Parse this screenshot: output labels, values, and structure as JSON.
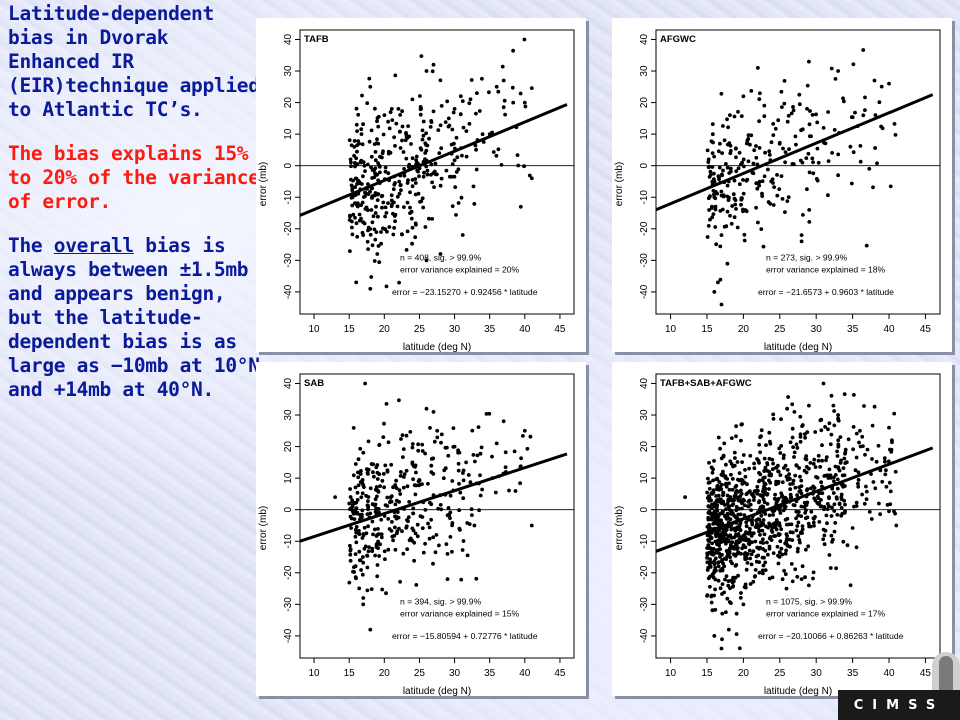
{
  "text": {
    "heading": "Latitude-dependent bias in Dvorak Enhanced IR (EIR)technique applied to Atlantic TC’s.",
    "para1": "The bias explains 15% to 20% of the variance of error.",
    "para2_pre": "The ",
    "para2_underline": "overall",
    "para2_post": " bias is always between ±1.5mb and appears benign, but the latitude-dependent bias is as large as −10mb at 10°N and +14mb at 40°N."
  },
  "logo": {
    "text": "CIMSS"
  },
  "colors": {
    "heading": "#0a1a9a",
    "highlight": "#ff1a10",
    "points": "#000000"
  },
  "chart_data": [
    {
      "type": "scatter",
      "title": "TAFB",
      "xlabel": "latitude (deg N)",
      "ylabel": "error (mb)",
      "xlim": [
        8,
        47
      ],
      "ylim": [
        -47,
        43
      ],
      "xticks": [
        10,
        15,
        20,
        25,
        30,
        35,
        40,
        45
      ],
      "yticks": [
        -40,
        -30,
        -20,
        -10,
        0,
        10,
        20,
        30,
        40
      ],
      "stats": [
        "n = 408, sig. > 99.9%",
        "error variance explained = 20%",
        "error = −23.15270 + 0.92456 * latitude"
      ],
      "n": 408,
      "intercept": -23.1527,
      "slope": 0.92456,
      "fit_line": {
        "x": [
          8,
          46
        ],
        "y": [
          -15.76,
          19.38
        ]
      },
      "points_sample": [
        [
          15.2,
          2
        ],
        [
          15.5,
          -10
        ],
        [
          16,
          -37
        ],
        [
          18,
          -39
        ],
        [
          18,
          25
        ],
        [
          20,
          -20
        ],
        [
          22,
          18
        ],
        [
          24,
          21
        ],
        [
          26,
          30
        ],
        [
          27,
          32
        ],
        [
          30,
          18
        ],
        [
          35,
          10
        ],
        [
          36,
          25
        ],
        [
          37,
          27
        ],
        [
          40,
          20
        ],
        [
          41,
          -4
        ],
        [
          28,
          -28
        ],
        [
          26,
          -30
        ],
        [
          19,
          -28
        ],
        [
          17,
          -22
        ]
      ]
    },
    {
      "type": "scatter",
      "title": "AFGWC",
      "xlabel": "latitude (deg N)",
      "ylabel": "error (mb)",
      "xlim": [
        8,
        47
      ],
      "ylim": [
        -47,
        43
      ],
      "xticks": [
        10,
        15,
        20,
        25,
        30,
        35,
        40,
        45
      ],
      "yticks": [
        -40,
        -30,
        -20,
        -10,
        0,
        10,
        20,
        30,
        40
      ],
      "stats": [
        "n = 273, sig. > 99.9%",
        "error variance explained = 18%",
        "error = −21.6573 + 0.9603 * latitude"
      ],
      "n": 273,
      "intercept": -21.6573,
      "slope": 0.9603,
      "fit_line": {
        "x": [
          8,
          46
        ],
        "y": [
          -13.97,
          22.52
        ]
      },
      "points_sample": [
        [
          16,
          -40
        ],
        [
          17,
          -44
        ],
        [
          16.5,
          -37
        ],
        [
          17,
          -22
        ],
        [
          22,
          -18
        ],
        [
          28,
          -22
        ],
        [
          28,
          -24
        ],
        [
          33,
          -3
        ],
        [
          40,
          26
        ],
        [
          38,
          27
        ],
        [
          33,
          30
        ],
        [
          29,
          33
        ],
        [
          22,
          31
        ],
        [
          20,
          22
        ],
        [
          16,
          -10
        ],
        [
          18,
          -5
        ]
      ]
    },
    {
      "type": "scatter",
      "title": "SAB",
      "xlabel": "latitude (deg N)",
      "ylabel": "error (mb)",
      "xlim": [
        8,
        47
      ],
      "ylim": [
        -47,
        43
      ],
      "xticks": [
        10,
        15,
        20,
        25,
        30,
        35,
        40,
        45
      ],
      "yticks": [
        -40,
        -30,
        -20,
        -10,
        0,
        10,
        20,
        30,
        40
      ],
      "stats": [
        "n = 394, sig. > 99.9%",
        "error variance explained = 15%",
        "error = −15.80594 + 0.72776 * latitude"
      ],
      "n": 394,
      "intercept": -15.80594,
      "slope": 0.72776,
      "fit_line": {
        "x": [
          8,
          46
        ],
        "y": [
          -9.98,
          17.67
        ]
      },
      "points_sample": [
        [
          13,
          4
        ],
        [
          17,
          -28
        ],
        [
          17,
          -30
        ],
        [
          18,
          -38
        ],
        [
          26,
          32
        ],
        [
          27,
          31
        ],
        [
          29,
          -14
        ],
        [
          29,
          -22
        ],
        [
          40,
          25
        ],
        [
          41,
          -5
        ],
        [
          36,
          21
        ],
        [
          37,
          28
        ],
        [
          30,
          20
        ],
        [
          24,
          15
        ]
      ]
    },
    {
      "type": "scatter",
      "title": "TAFB+SAB+AFGWC",
      "xlabel": "latitude (deg N)",
      "ylabel": "error (mb)",
      "xlim": [
        8,
        47
      ],
      "ylim": [
        -47,
        43
      ],
      "xticks": [
        10,
        15,
        20,
        25,
        30,
        35,
        40,
        45
      ],
      "yticks": [
        -40,
        -30,
        -20,
        -10,
        0,
        10,
        20,
        30,
        40
      ],
      "stats": [
        "n = 1075, sig. > 99.9%",
        "error variance explained = 17%",
        "error = −20.10066 + 0.86263 * latitude"
      ],
      "n": 1075,
      "intercept": -20.10066,
      "slope": 0.86263,
      "fit_line": {
        "x": [
          8,
          46
        ],
        "y": [
          -13.2,
          19.58
        ]
      },
      "points_sample": [
        [
          16,
          -40
        ],
        [
          17,
          -44
        ],
        [
          18,
          -38
        ],
        [
          26,
          32
        ],
        [
          27,
          31
        ],
        [
          29,
          33
        ],
        [
          33,
          30
        ],
        [
          40,
          26
        ],
        [
          41,
          -5
        ],
        [
          12,
          4
        ],
        [
          36,
          25
        ],
        [
          28,
          -22
        ],
        [
          29,
          -24
        ],
        [
          20,
          -30
        ]
      ]
    }
  ]
}
